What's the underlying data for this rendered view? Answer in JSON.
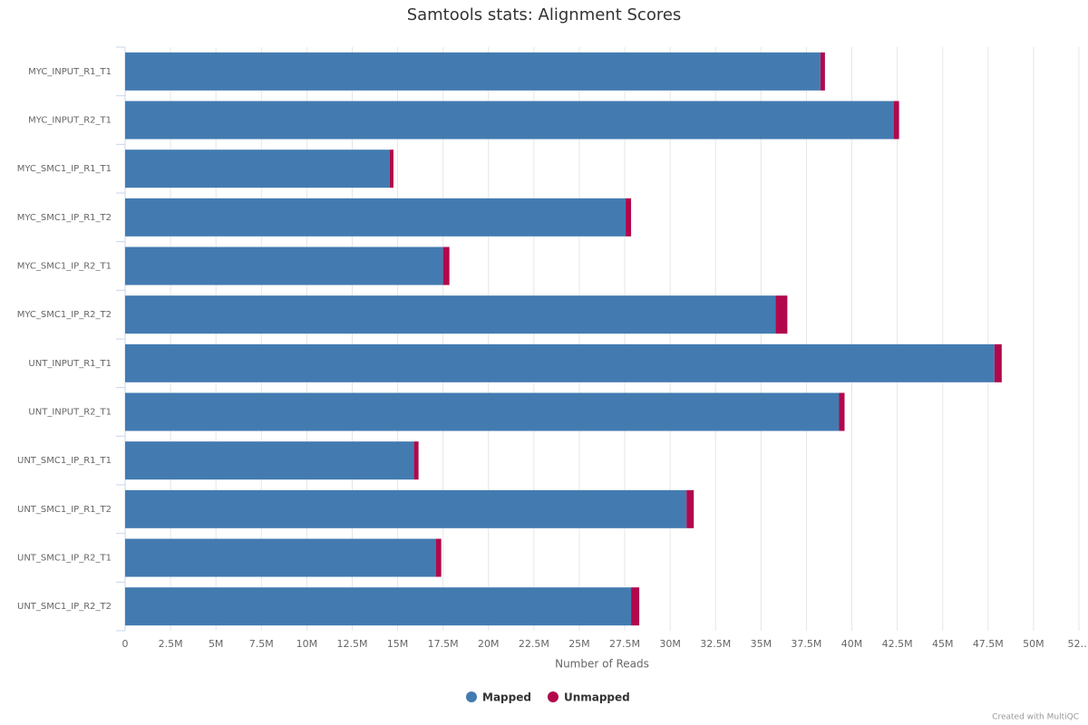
{
  "chart_data": {
    "type": "stacked-bar-horizontal",
    "title": "Samtools stats: Alignment Scores",
    "x_label": "Number of Reads",
    "credits": "Created with MultiQC",
    "categories": [
      "MYC_INPUT_R1_T1",
      "MYC_INPUT_R2_T1",
      "MYC_SMC1_IP_R1_T1",
      "MYC_SMC1_IP_R1_T2",
      "MYC_SMC1_IP_R2_T1",
      "MYC_SMC1_IP_R2_T2",
      "UNT_INPUT_R1_T1",
      "UNT_INPUT_R2_T1",
      "UNT_SMC1_IP_R1_T1",
      "UNT_SMC1_IP_R1_T2",
      "UNT_SMC1_IP_R2_T1",
      "UNT_SMC1_IP_R2_T2"
    ],
    "series": [
      {
        "name": "Mapped",
        "color": "#437bb1",
        "values": [
          38270000,
          42300000,
          14570000,
          27550000,
          17500000,
          35800000,
          47850000,
          39300000,
          15900000,
          30900000,
          17100000,
          27850000
        ]
      },
      {
        "name": "Unmapped",
        "color": "#b1084c",
        "values": [
          250000,
          300000,
          200000,
          300000,
          350000,
          650000,
          400000,
          300000,
          250000,
          400000,
          300000,
          450000
        ]
      }
    ],
    "xlim": [
      0,
      52500000
    ],
    "xticks": [
      0,
      {
        "value": 2500000,
        "label": "2.5M"
      },
      {
        "value": 5000000,
        "label": "5M"
      },
      {
        "value": 7500000,
        "label": "7.5M"
      },
      {
        "value": 10000000,
        "label": "10M"
      },
      {
        "value": 12500000,
        "label": "12.5M"
      },
      {
        "value": 15000000,
        "label": "15M"
      },
      {
        "value": 17500000,
        "label": "17.5M"
      },
      {
        "value": 20000000,
        "label": "20M"
      },
      {
        "value": 22500000,
        "label": "22.5M"
      },
      {
        "value": 25000000,
        "label": "25M"
      },
      {
        "value": 27500000,
        "label": "27.5M"
      },
      {
        "value": 30000000,
        "label": "30M"
      },
      {
        "value": 32500000,
        "label": "32.5M"
      },
      {
        "value": 35000000,
        "label": "35M"
      },
      {
        "value": 37500000,
        "label": "37.5M"
      },
      {
        "value": 40000000,
        "label": "40M"
      },
      {
        "value": 42500000,
        "label": "42.5M"
      },
      {
        "value": 45000000,
        "label": "45M"
      },
      {
        "value": 47500000,
        "label": "47.5M"
      },
      {
        "value": 50000000,
        "label": "50M"
      },
      {
        "value": 52500000,
        "label": "52…"
      }
    ],
    "grid": true,
    "legend": "bottom"
  }
}
